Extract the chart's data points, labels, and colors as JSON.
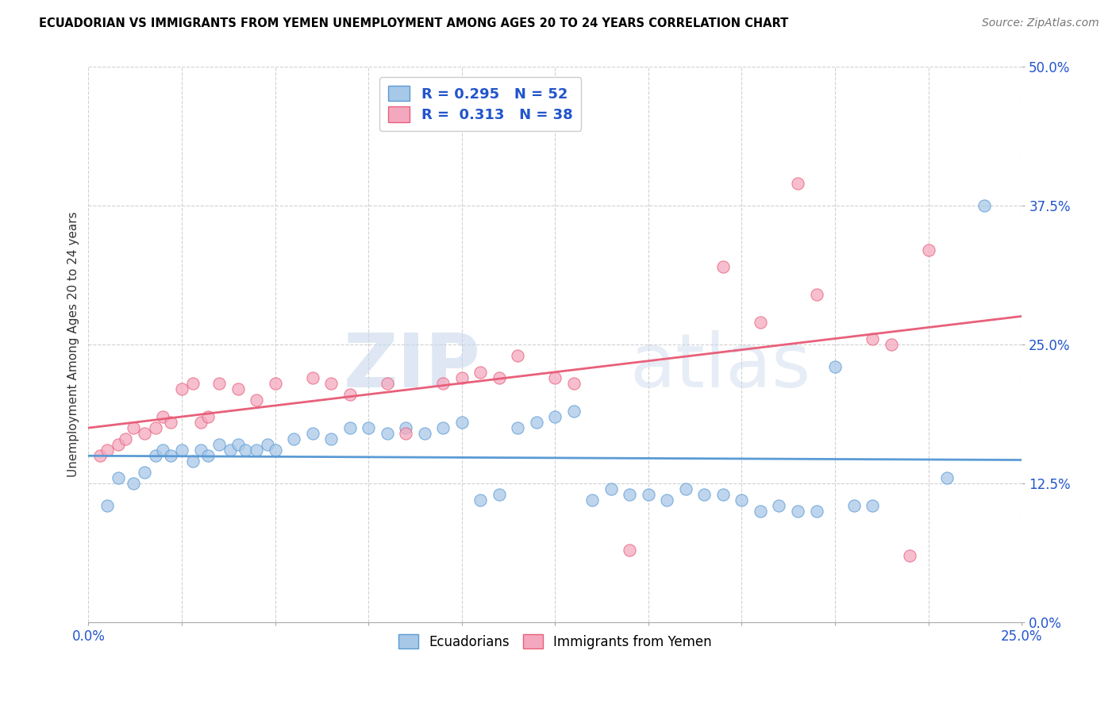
{
  "title": "ECUADORIAN VS IMMIGRANTS FROM YEMEN UNEMPLOYMENT AMONG AGES 20 TO 24 YEARS CORRELATION CHART",
  "source_text": "Source: ZipAtlas.com",
  "ylabel": "Unemployment Among Ages 20 to 24 years",
  "xlim": [
    0.0,
    0.25
  ],
  "ylim": [
    0.0,
    0.5
  ],
  "xticks": [
    0.0,
    0.025,
    0.05,
    0.075,
    0.1,
    0.125,
    0.15,
    0.175,
    0.2,
    0.225,
    0.25
  ],
  "yticks": [
    0.0,
    0.125,
    0.25,
    0.375,
    0.5
  ],
  "ytick_labels": [
    "0.0%",
    "12.5%",
    "25.0%",
    "37.5%",
    "50.0%"
  ],
  "blue_color": "#A8C8E8",
  "pink_color": "#F4A8C0",
  "blue_line_color": "#5B9BD5",
  "pink_line_color": "#E8607A",
  "R_blue": 0.295,
  "N_blue": 52,
  "R_pink": 0.313,
  "N_pink": 38,
  "blue_scatter_x": [
    0.005,
    0.008,
    0.012,
    0.015,
    0.018,
    0.02,
    0.022,
    0.025,
    0.028,
    0.03,
    0.032,
    0.035,
    0.038,
    0.04,
    0.042,
    0.045,
    0.048,
    0.05,
    0.055,
    0.06,
    0.065,
    0.07,
    0.075,
    0.08,
    0.085,
    0.09,
    0.095,
    0.1,
    0.105,
    0.11,
    0.115,
    0.12,
    0.125,
    0.13,
    0.135,
    0.14,
    0.145,
    0.15,
    0.155,
    0.16,
    0.165,
    0.17,
    0.175,
    0.18,
    0.185,
    0.19,
    0.195,
    0.2,
    0.205,
    0.21,
    0.23,
    0.24
  ],
  "blue_scatter_y": [
    0.105,
    0.13,
    0.125,
    0.135,
    0.15,
    0.155,
    0.15,
    0.155,
    0.145,
    0.155,
    0.15,
    0.16,
    0.155,
    0.16,
    0.155,
    0.155,
    0.16,
    0.155,
    0.165,
    0.17,
    0.165,
    0.175,
    0.175,
    0.17,
    0.175,
    0.17,
    0.175,
    0.18,
    0.11,
    0.115,
    0.175,
    0.18,
    0.185,
    0.19,
    0.11,
    0.12,
    0.115,
    0.115,
    0.11,
    0.12,
    0.115,
    0.115,
    0.11,
    0.1,
    0.105,
    0.1,
    0.1,
    0.23,
    0.105,
    0.105,
    0.13,
    0.375
  ],
  "pink_scatter_x": [
    0.003,
    0.005,
    0.008,
    0.01,
    0.012,
    0.015,
    0.018,
    0.02,
    0.022,
    0.025,
    0.028,
    0.03,
    0.032,
    0.035,
    0.04,
    0.045,
    0.05,
    0.06,
    0.065,
    0.07,
    0.08,
    0.085,
    0.095,
    0.1,
    0.105,
    0.11,
    0.115,
    0.125,
    0.13,
    0.145,
    0.17,
    0.18,
    0.19,
    0.195,
    0.21,
    0.215,
    0.22,
    0.225
  ],
  "pink_scatter_y": [
    0.15,
    0.155,
    0.16,
    0.165,
    0.175,
    0.17,
    0.175,
    0.185,
    0.18,
    0.21,
    0.215,
    0.18,
    0.185,
    0.215,
    0.21,
    0.2,
    0.215,
    0.22,
    0.215,
    0.205,
    0.215,
    0.17,
    0.215,
    0.22,
    0.225,
    0.22,
    0.24,
    0.22,
    0.215,
    0.065,
    0.32,
    0.27,
    0.395,
    0.295,
    0.255,
    0.25,
    0.06,
    0.335
  ],
  "watermark_zip": "ZIP",
  "watermark_atlas": "atlas",
  "figsize": [
    14.06,
    8.92
  ],
  "dpi": 100,
  "legend_text_color": "#2255CC",
  "tick_color": "#2255CC"
}
